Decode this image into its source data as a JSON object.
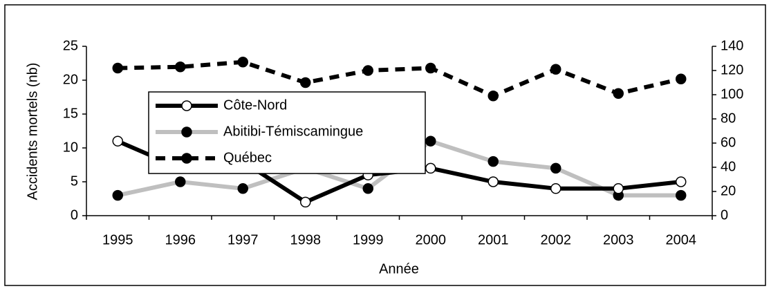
{
  "chart_data": {
    "type": "line",
    "x_label": "Année",
    "y_label": "Accidents mortels (nb)",
    "categories": [
      "1995",
      "1996",
      "1997",
      "1998",
      "1999",
      "2000",
      "2001",
      "2002",
      "2003",
      "2004"
    ],
    "series": [
      {
        "name": "Côte-Nord",
        "color": "#000000",
        "linestyle": "solid",
        "marker_fill": "#ffffff",
        "values": [
          11,
          7,
          8,
          2,
          6,
          7,
          5,
          4,
          4,
          5
        ]
      },
      {
        "name": "Abitibi-Témiscamingue",
        "color": "#bfbfbf",
        "linestyle": "solid",
        "marker_fill": "#000000",
        "values": [
          3,
          5,
          4,
          7,
          4,
          11,
          8,
          7,
          3,
          3
        ]
      },
      {
        "name": "Québec",
        "color": "#000000",
        "linestyle": "dashed",
        "marker_fill": "#000000",
        "axis": "y2",
        "values": [
          122,
          123,
          127,
          110,
          120,
          122,
          99,
          121,
          101,
          113
        ]
      }
    ],
    "ylim": [
      0,
      25
    ],
    "yticks": [
      0,
      5,
      10,
      15,
      20,
      25
    ],
    "y2lim": [
      0,
      140
    ],
    "y2ticks": [
      0,
      20,
      40,
      60,
      80,
      100,
      120,
      140
    ],
    "legend": "upper left"
  }
}
